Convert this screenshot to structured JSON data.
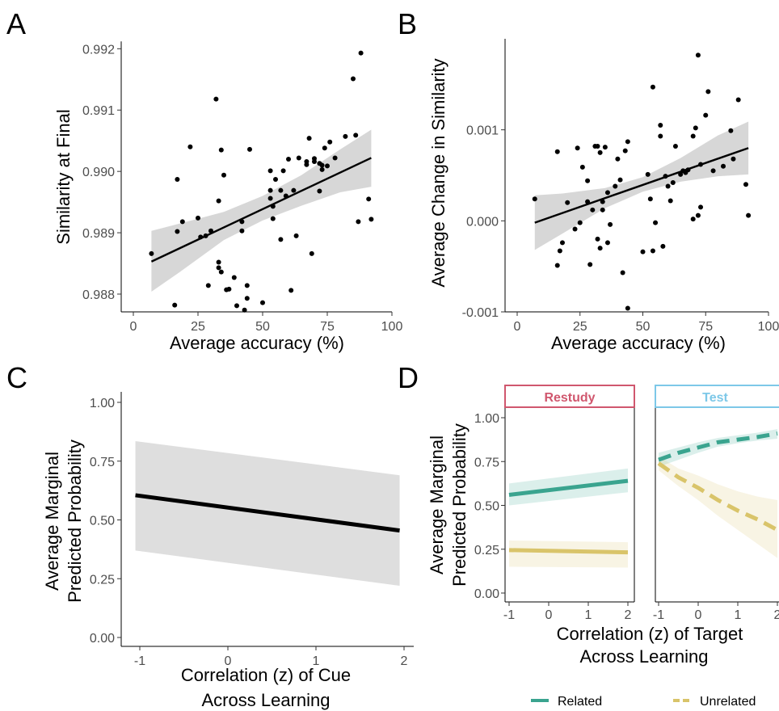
{
  "panels": {
    "A": {
      "letter": "A"
    },
    "B": {
      "letter": "B"
    },
    "C": {
      "letter": "C"
    },
    "D": {
      "letter": "D"
    }
  },
  "colors": {
    "points": "#000000",
    "fit_line": "#000000",
    "ribbon": "#bfbfbf",
    "related": "#3aa48f",
    "unrelated": "#d9c46a",
    "restudy_border": "#d0576e",
    "test_border": "#7dc8e8"
  },
  "chart_data": [
    {
      "id": "A",
      "type": "scatter",
      "xlabel": "Average accuracy (%)",
      "ylabel": "Similarity at Final",
      "xlim": [
        0,
        100
      ],
      "ylim": [
        0.98771,
        0.99212
      ],
      "xticks": [
        0,
        25,
        50,
        75,
        100
      ],
      "yticks": [
        0.988,
        0.989,
        0.99,
        0.991,
        0.992
      ],
      "ytick_labels": [
        "0.988",
        "0.989",
        "0.990",
        "0.991",
        "0.992"
      ],
      "points": [
        [
          7,
          0.98866
        ],
        [
          16,
          0.98782
        ],
        [
          17,
          0.98902
        ],
        [
          17,
          0.98987
        ],
        [
          19,
          0.98918
        ],
        [
          22,
          0.9904
        ],
        [
          25,
          0.98924
        ],
        [
          26,
          0.98893
        ],
        [
          28,
          0.98895
        ],
        [
          29,
          0.98814
        ],
        [
          30,
          0.98903
        ],
        [
          32,
          0.99118
        ],
        [
          33,
          0.98843
        ],
        [
          33,
          0.98852
        ],
        [
          33,
          0.98952
        ],
        [
          34,
          0.99035
        ],
        [
          34,
          0.98836
        ],
        [
          35,
          0.98994
        ],
        [
          36,
          0.98807
        ],
        [
          37,
          0.98808
        ],
        [
          39,
          0.98827
        ],
        [
          40,
          0.98781
        ],
        [
          42,
          0.98918
        ],
        [
          42,
          0.98903
        ],
        [
          43,
          0.98774
        ],
        [
          44,
          0.98814
        ],
        [
          44,
          0.98793
        ],
        [
          45,
          0.99036
        ],
        [
          50,
          0.98786
        ],
        [
          53,
          0.99001
        ],
        [
          53,
          0.98956
        ],
        [
          53,
          0.98969
        ],
        [
          54,
          0.98943
        ],
        [
          54,
          0.98923
        ],
        [
          55,
          0.98987
        ],
        [
          57,
          0.98969
        ],
        [
          57,
          0.98889
        ],
        [
          58,
          0.99001
        ],
        [
          59,
          0.9896
        ],
        [
          60,
          0.9902
        ],
        [
          61,
          0.98806
        ],
        [
          62,
          0.98969
        ],
        [
          63,
          0.98895
        ],
        [
          64,
          0.99022
        ],
        [
          67,
          0.99011
        ],
        [
          67,
          0.99016
        ],
        [
          68,
          0.99054
        ],
        [
          69,
          0.98866
        ],
        [
          70,
          0.99021
        ],
        [
          70,
          0.99016
        ],
        [
          72,
          0.98968
        ],
        [
          72,
          0.99013
        ],
        [
          73,
          0.9901
        ],
        [
          73,
          0.99003
        ],
        [
          74,
          0.99038
        ],
        [
          75,
          0.99009
        ],
        [
          76,
          0.99048
        ],
        [
          78,
          0.99022
        ],
        [
          82,
          0.99057
        ],
        [
          85,
          0.99151
        ],
        [
          86,
          0.99059
        ],
        [
          87,
          0.98918
        ],
        [
          88,
          0.99193
        ],
        [
          91,
          0.98955
        ],
        [
          92,
          0.98922
        ]
      ],
      "fit": {
        "x": [
          7,
          92
        ],
        "y": [
          0.98853,
          0.99022
        ]
      },
      "ribbon": {
        "x": [
          7,
          18,
          35,
          50,
          65,
          80,
          92
        ],
        "lower": [
          0.98804,
          0.98836,
          0.98888,
          0.9892,
          0.98944,
          0.98966,
          0.98975
        ],
        "upper": [
          0.98903,
          0.98915,
          0.98934,
          0.9896,
          0.98994,
          0.99036,
          0.99068
        ]
      }
    },
    {
      "id": "B",
      "type": "scatter",
      "xlabel": "Average accuracy (%)",
      "ylabel": "Average Change in Similarity",
      "xlim": [
        0,
        100
      ],
      "ylim": [
        -0.001,
        0.002
      ],
      "xticks": [
        0,
        25,
        50,
        75,
        100
      ],
      "yticks": [
        -0.001,
        0.0,
        0.001
      ],
      "ytick_labels": [
        "-0.001",
        "0.000",
        "0.001"
      ],
      "points": [
        [
          7,
          0.00024
        ],
        [
          16,
          0.00076
        ],
        [
          16,
          -0.00049
        ],
        [
          17,
          -0.00033
        ],
        [
          18,
          -0.00024
        ],
        [
          20,
          0.0002
        ],
        [
          23,
          -9e-05
        ],
        [
          24,
          0.0008
        ],
        [
          25,
          -2e-05
        ],
        [
          26,
          0.00059
        ],
        [
          28,
          0.00044
        ],
        [
          28,
          0.00021
        ],
        [
          29,
          -0.00048
        ],
        [
          30,
          0.00012
        ],
        [
          31,
          0.00082
        ],
        [
          32,
          0.00082
        ],
        [
          32,
          -0.0002
        ],
        [
          33,
          0.00075
        ],
        [
          33,
          -0.0003
        ],
        [
          34,
          0.00021
        ],
        [
          34,
          0.00012
        ],
        [
          35,
          0.00081
        ],
        [
          36,
          0.00031
        ],
        [
          36,
          -0.00024
        ],
        [
          37,
          -4e-05
        ],
        [
          39,
          0.00038
        ],
        [
          40,
          0.00068
        ],
        [
          41,
          0.00045
        ],
        [
          42,
          -0.00057
        ],
        [
          43,
          0.00077
        ],
        [
          44,
          0.00087
        ],
        [
          44,
          -0.00096
        ],
        [
          50,
          -0.00034
        ],
        [
          52,
          0.00051
        ],
        [
          53,
          0.00024
        ],
        [
          54,
          0.00147
        ],
        [
          54,
          -0.00033
        ],
        [
          55,
          -2e-05
        ],
        [
          57,
          0.00105
        ],
        [
          57,
          0.00093
        ],
        [
          58,
          -0.00028
        ],
        [
          59,
          0.00049
        ],
        [
          60,
          0.00038
        ],
        [
          61,
          0.00022
        ],
        [
          62,
          0.00042
        ],
        [
          63,
          0.00082
        ],
        [
          65,
          0.00051
        ],
        [
          66,
          0.00055
        ],
        [
          67,
          0.00053
        ],
        [
          68,
          0.00056
        ],
        [
          70,
          0.00093
        ],
        [
          70,
          2e-05
        ],
        [
          71,
          0.00102
        ],
        [
          72,
          6e-05
        ],
        [
          72,
          0.00182
        ],
        [
          73,
          0.00015
        ],
        [
          73,
          0.00062
        ],
        [
          75,
          0.00116
        ],
        [
          76,
          0.00142
        ],
        [
          78,
          0.00055
        ],
        [
          82,
          0.0006
        ],
        [
          85,
          0.00099
        ],
        [
          86,
          0.00068
        ],
        [
          88,
          0.00133
        ],
        [
          91,
          0.0004
        ],
        [
          92,
          6e-05
        ]
      ],
      "fit": {
        "x": [
          7,
          92
        ],
        "y": [
          -2e-05,
          0.0008
        ]
      },
      "ribbon": {
        "x": [
          7,
          18,
          35,
          50,
          65,
          80,
          92
        ],
        "lower": [
          -0.00032,
          -0.00014,
          0.00014,
          0.00032,
          0.00043,
          0.00049,
          0.00051
        ],
        "upper": [
          0.00028,
          0.0003,
          0.00036,
          0.00048,
          0.00069,
          0.00094,
          0.00109
        ]
      }
    },
    {
      "id": "C",
      "type": "line",
      "xlabel_lines": [
        "Correlation (z) of Cue",
        "Across Learning"
      ],
      "ylabel_lines": [
        "Average Marginal",
        "Predicted Probability"
      ],
      "xlim": [
        -1.2,
        2.1
      ],
      "ylim": [
        -0.035,
        1.05
      ],
      "xticks": [
        -1,
        0,
        1,
        2
      ],
      "xtick_labels": [
        "-1",
        "0",
        "1",
        "2"
      ],
      "yticks": [
        0,
        0.25,
        0.5,
        0.75,
        1.0
      ],
      "ytick_labels": [
        "0.00",
        "0.25",
        "0.50",
        "0.75",
        "1.00"
      ],
      "series": [
        {
          "x": [
            -1.05,
            1.95
          ],
          "y": [
            0.605,
            0.455
          ],
          "lower": [
            0.37,
            0.22
          ],
          "upper": [
            0.835,
            0.69
          ]
        }
      ]
    },
    {
      "id": "D",
      "type": "line",
      "xlabel_lines": [
        "Correlation (z) of Target",
        "Across Learning"
      ],
      "ylabel_lines": [
        "Average Marginal",
        "Predicted Probability"
      ],
      "facets": [
        "Restudy",
        "Test"
      ],
      "xlim": [
        -1.1,
        2.2
      ],
      "ylim": [
        -0.035,
        1.05
      ],
      "xticks": [
        -1,
        0,
        1,
        2
      ],
      "xtick_labels": [
        "-1",
        "0",
        "1",
        "2"
      ],
      "yticks": [
        0,
        0.25,
        0.5,
        0.75,
        1.0
      ],
      "ytick_labels": [
        "0.00",
        "0.25",
        "0.50",
        "0.75",
        "1.00"
      ],
      "legend": [
        "Related",
        "Unrelated"
      ],
      "legend_position": "bottom",
      "series": [
        {
          "facet": "Restudy",
          "name": "Related",
          "x": [
            -1,
            2
          ],
          "y": [
            0.56,
            0.64
          ],
          "lower": [
            0.5,
            0.575
          ],
          "upper": [
            0.625,
            0.71
          ]
        },
        {
          "facet": "Restudy",
          "name": "Unrelated",
          "x": [
            -1,
            2
          ],
          "y": [
            0.245,
            0.232
          ],
          "lower": [
            0.15,
            0.145
          ],
          "upper": [
            0.3,
            0.29
          ]
        },
        {
          "facet": "Test",
          "name": "Related",
          "x": [
            -1,
            -0.5,
            0,
            0.5,
            1,
            1.5,
            2
          ],
          "y": [
            0.76,
            0.8,
            0.83,
            0.86,
            0.875,
            0.89,
            0.91
          ],
          "lower": [
            0.72,
            0.76,
            0.8,
            0.835,
            0.855,
            0.87,
            0.88
          ],
          "upper": [
            0.8,
            0.83,
            0.86,
            0.885,
            0.9,
            0.915,
            0.935
          ]
        },
        {
          "facet": "Test",
          "name": "Unrelated",
          "x": [
            -1,
            -0.5,
            0,
            0.5,
            1,
            1.5,
            2
          ],
          "y": [
            0.74,
            0.66,
            0.6,
            0.53,
            0.47,
            0.42,
            0.36
          ],
          "lower": [
            0.7,
            0.61,
            0.53,
            0.44,
            0.36,
            0.28,
            0.2
          ],
          "upper": [
            0.78,
            0.71,
            0.67,
            0.62,
            0.58,
            0.55,
            0.53
          ]
        }
      ]
    }
  ]
}
